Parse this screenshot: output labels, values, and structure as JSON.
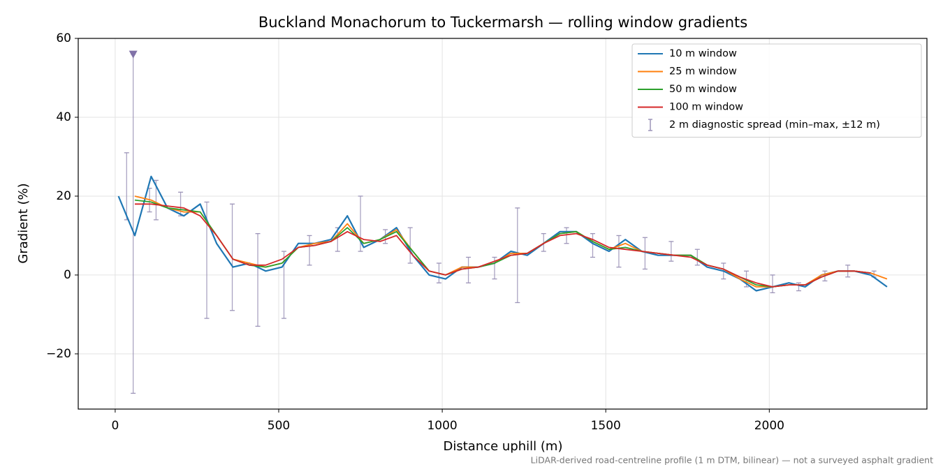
{
  "chart_data": {
    "type": "line",
    "title": "Buckland Monachorum to Tuckermarsh — rolling window gradients",
    "xlabel": "Distance uphill (m)",
    "ylabel": "Gradient (%)",
    "footnote": "LiDAR-derived road-centreline profile (1 m DTM, bilinear) — not a surveyed asphalt gradient",
    "xlim": [
      -113,
      2482
    ],
    "ylim": [
      -34,
      60
    ],
    "xticks": [
      0,
      500,
      1000,
      1500,
      2000
    ],
    "yticks": [
      {
        "value": -20,
        "label": "−20"
      },
      0,
      20,
      40,
      60
    ],
    "grid": true,
    "legend": "upper right",
    "x": [
      10,
      60,
      110,
      160,
      210,
      260,
      310,
      360,
      410,
      460,
      510,
      560,
      610,
      660,
      710,
      760,
      810,
      860,
      910,
      960,
      1010,
      1060,
      1110,
      1160,
      1210,
      1260,
      1310,
      1360,
      1410,
      1460,
      1510,
      1560,
      1610,
      1660,
      1710,
      1760,
      1810,
      1860,
      1910,
      1960,
      2010,
      2060,
      2110,
      2160,
      2210,
      2260,
      2310,
      2360
    ],
    "series": [
      {
        "name": "10 m window",
        "color": "#1f77b4",
        "values": [
          20,
          10,
          25,
          17,
          15,
          18,
          8,
          2,
          3,
          1,
          2,
          8,
          8,
          9,
          15,
          7,
          9,
          12,
          5,
          0,
          -1,
          2,
          2,
          3,
          6,
          5,
          8,
          11,
          11,
          8,
          6,
          9,
          6,
          5,
          5,
          5,
          2,
          1,
          -1,
          -4,
          -3,
          -2,
          -3,
          0,
          1,
          1,
          0,
          -3
        ]
      },
      {
        "name": "25 m window",
        "color": "#ff7f0e",
        "values": [
          null,
          20,
          19,
          17,
          16,
          16,
          10,
          4,
          3,
          2,
          3,
          7,
          8,
          8.5,
          13,
          8,
          9,
          11.5,
          6,
          1,
          0,
          2,
          2,
          3,
          5.5,
          5.5,
          8,
          10.5,
          11,
          8.5,
          6.5,
          8,
          6,
          5.5,
          5,
          5,
          2.5,
          1.5,
          -1,
          -3,
          -3,
          -2.5,
          -2.5,
          0,
          1,
          1,
          0.5,
          -1
        ]
      },
      {
        "name": "50 m window",
        "color": "#2ca02c",
        "values": [
          null,
          19,
          18.5,
          17,
          16.5,
          16,
          10,
          4,
          2.5,
          2,
          3,
          7,
          7.5,
          8.5,
          12,
          8,
          9,
          11,
          6,
          1,
          0,
          1.5,
          2,
          3,
          5,
          5.5,
          8,
          10.5,
          11,
          8.5,
          6.5,
          7,
          6,
          5.5,
          5,
          5,
          2.5,
          1.5,
          -0.5,
          -2.5,
          -3,
          -2.5,
          -2.5,
          -0.5,
          1,
          1,
          0.5,
          null
        ]
      },
      {
        "name": "100 m window",
        "color": "#d62728",
        "values": [
          null,
          18,
          18,
          17.5,
          17,
          15,
          10,
          4,
          2.5,
          2.5,
          4,
          7,
          7.5,
          8.5,
          11,
          9,
          8.5,
          10,
          5,
          1,
          0,
          1.5,
          2,
          3.5,
          5,
          5.5,
          8,
          10,
          10.5,
          9,
          7,
          6.5,
          6,
          5.5,
          5,
          4.5,
          2.5,
          1.5,
          -0.5,
          -2,
          -3,
          -2.5,
          -2.5,
          -0.5,
          1,
          1,
          0.5,
          null
        ]
      }
    ],
    "errorbars": {
      "name": "2 m diagnostic spread (min–max, ±12 m)",
      "color": "#9c94b8",
      "x": [
        35,
        55,
        105,
        125,
        200,
        280,
        358,
        436,
        516,
        594,
        680,
        750,
        826,
        902,
        990,
        1080,
        1160,
        1230,
        1310,
        1380,
        1460,
        1540,
        1620,
        1700,
        1780,
        1860,
        1930,
        2010,
        2090,
        2170,
        2240,
        2320
      ],
      "low": [
        14,
        -30,
        16,
        14,
        15,
        -11,
        -9,
        -13,
        -11,
        2.5,
        6,
        6,
        8,
        3,
        -2,
        -2,
        -1,
        -7,
        6,
        8,
        4.5,
        2,
        1.5,
        3.5,
        2.5,
        -1,
        -3,
        -4.5,
        -4,
        -1.5,
        -0.5,
        -0.5
      ],
      "high": [
        31,
        56,
        22,
        24,
        21,
        18.5,
        18,
        10.5,
        6,
        10,
        12,
        20,
        11.5,
        12,
        3,
        4.5,
        4.5,
        17,
        10.5,
        12,
        10.5,
        10,
        9.5,
        8.5,
        6.5,
        3,
        1,
        0,
        -2,
        1,
        2.5,
        1
      ]
    }
  }
}
